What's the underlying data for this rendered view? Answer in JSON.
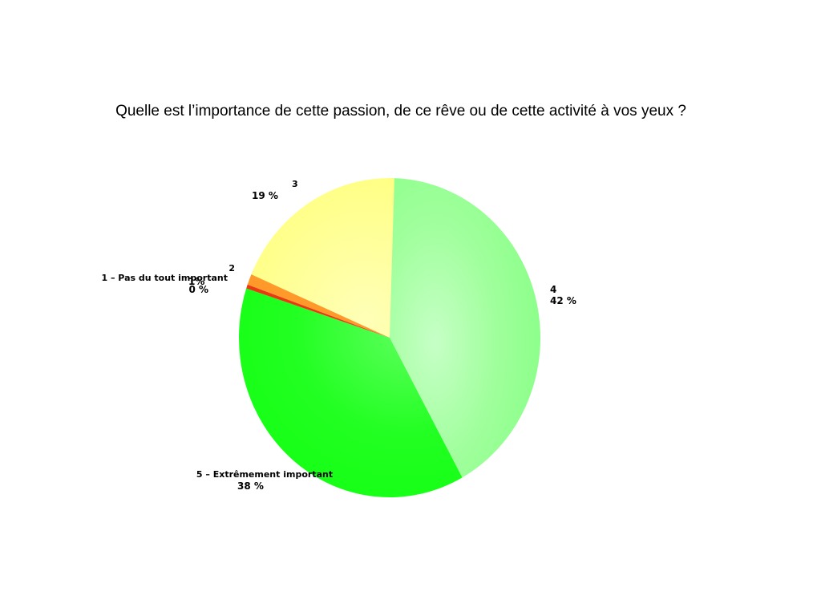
{
  "chart_data": {
    "type": "pie",
    "title": "Quelle est l’importance de cette passion, de ce rêve ou de cette activité à vos yeux ?",
    "categories": [
      "4",
      "5 – Extrêmement important",
      "1 – Pas du tout important",
      "2",
      "3"
    ],
    "values": [
      42,
      38,
      0,
      1,
      19
    ],
    "value_labels": [
      "42 %",
      "38 %",
      "0 %",
      "1%",
      "19 %"
    ],
    "colors": [
      "#8cff8c",
      "#1aff1a",
      "#e83a10",
      "#ff9a2a",
      "#ffff88"
    ],
    "legend": "none"
  }
}
